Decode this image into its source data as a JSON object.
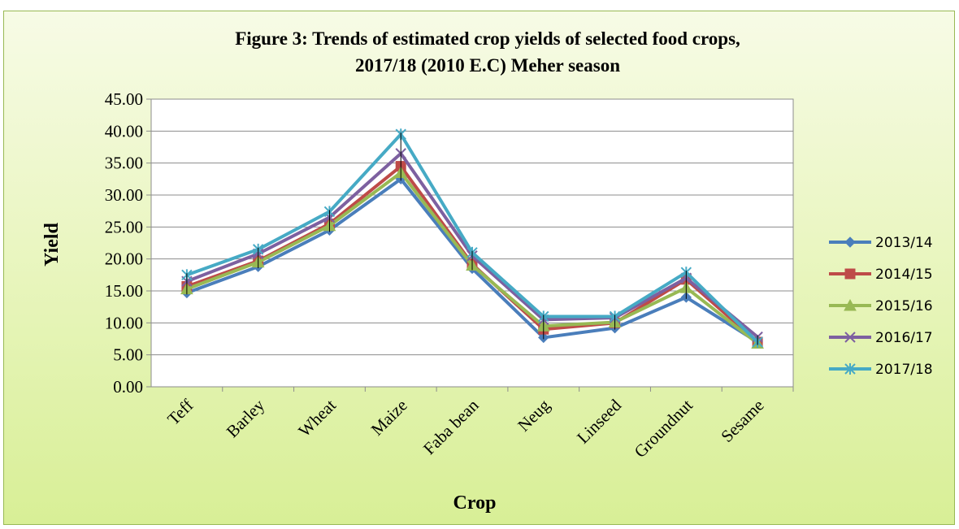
{
  "chart_data": {
    "type": "line",
    "title_line1": "Figure 3: Trends of estimated crop yields of selected food crops,",
    "title_line2": "2017/18 (2010 E.C) Meher season",
    "xlabel": "Crop",
    "ylabel": "Yield",
    "ylim": [
      0,
      45
    ],
    "yticks": [
      "0.00",
      "5.00",
      "10.00",
      "15.00",
      "20.00",
      "25.00",
      "30.00",
      "35.00",
      "40.00",
      "45.00"
    ],
    "grid": "horizontal",
    "legend_position": "right",
    "categories": [
      "Teff",
      "Barley",
      "Wheat",
      "Maize",
      "Faba bean",
      "Neug",
      "Linseed",
      "Groundnut",
      "Sesame"
    ],
    "series": [
      {
        "name": "2013/14",
        "color": "#4a7ebb",
        "marker": "diamond",
        "values": [
          14.7,
          18.8,
          24.5,
          32.5,
          18.5,
          7.7,
          9.2,
          14.0,
          7.0
        ]
      },
      {
        "name": "2014/15",
        "color": "#be4b48",
        "marker": "square",
        "values": [
          15.7,
          19.7,
          25.5,
          34.5,
          19.2,
          9.0,
          10.0,
          16.8,
          7.0
        ]
      },
      {
        "name": "2015/16",
        "color": "#98b954",
        "marker": "triangle",
        "values": [
          15.3,
          19.5,
          25.2,
          33.5,
          19.0,
          9.5,
          10.1,
          15.5,
          6.8
        ]
      },
      {
        "name": "2016/17",
        "color": "#7d60a0",
        "marker": "x",
        "values": [
          16.5,
          20.8,
          26.5,
          36.5,
          20.5,
          10.5,
          10.8,
          17.0,
          7.8
        ]
      },
      {
        "name": "2017/18",
        "color": "#46aac5",
        "marker": "star",
        "values": [
          17.5,
          21.5,
          27.4,
          39.5,
          21.0,
          11.0,
          11.0,
          17.9,
          7.0
        ]
      }
    ]
  }
}
